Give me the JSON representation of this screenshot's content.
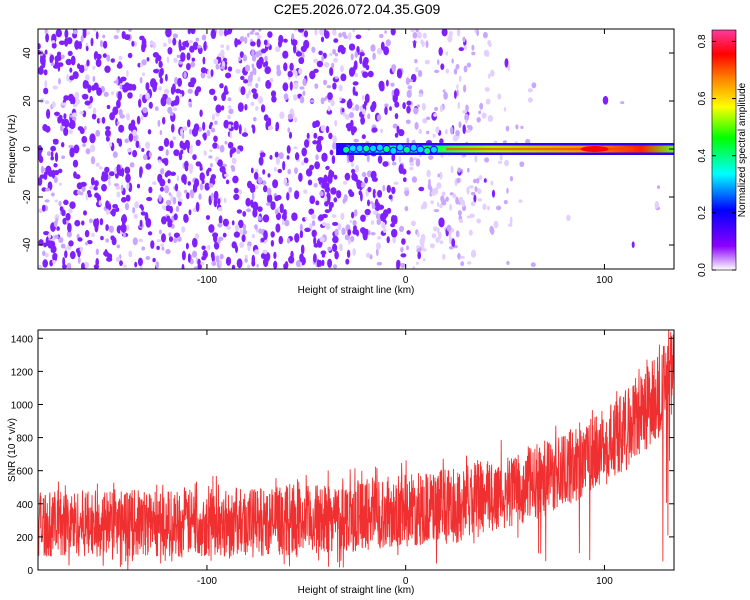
{
  "figure_title": "C2E5.2026.072.04.35.G09",
  "chart_data": [
    {
      "type": "heatmap",
      "title": "",
      "xlabel": "Height of straight line (km)",
      "ylabel": "Frequency (Hz)",
      "xlim": [
        -185,
        135
      ],
      "ylim": [
        -50,
        50
      ],
      "xticks": [
        -100,
        0,
        100
      ],
      "yticks": [
        -40,
        -20,
        0,
        20,
        40
      ],
      "grid": false,
      "colorbar": {
        "label": "Normalized spectral amplitude",
        "range": [
          0,
          0.84
        ],
        "ticks": [
          "0.0",
          "0.2",
          "0.4",
          "0.6",
          "0.8"
        ],
        "colormap": [
          "#ffffff",
          "#8b00ff",
          "#0000ff",
          "#00ffff",
          "#00ff00",
          "#ffff00",
          "#ff8000",
          "#ff0000",
          "#ff3aa0"
        ]
      },
      "features": {
        "noise_x_range": [
          -185,
          30
        ],
        "noise_color": "#8020ff",
        "signal_line": {
          "x_start": -35,
          "x_end": 135,
          "frequency": 0
        }
      }
    },
    {
      "type": "line",
      "title": "",
      "xlabel": "Height of straight line (km)",
      "ylabel": "SNR (10 * v/v)",
      "xlim": [
        -185,
        135
      ],
      "ylim": [
        0,
        1450
      ],
      "xticks": [
        -100,
        0,
        100
      ],
      "yticks": [
        0,
        200,
        400,
        600,
        800,
        1000,
        1200,
        1400
      ],
      "grid": false,
      "series": [
        {
          "name": "SNR",
          "color": "#f03030",
          "envelope_x": [
            -185,
            -100,
            -50,
            0,
            25,
            50,
            75,
            100,
            120,
            135
          ],
          "envelope_low": [
            80,
            80,
            90,
            140,
            160,
            230,
            350,
            500,
            700,
            900
          ],
          "envelope_high": [
            480,
            490,
            510,
            580,
            620,
            700,
            800,
            960,
            1220,
            1450
          ]
        }
      ]
    }
  ]
}
